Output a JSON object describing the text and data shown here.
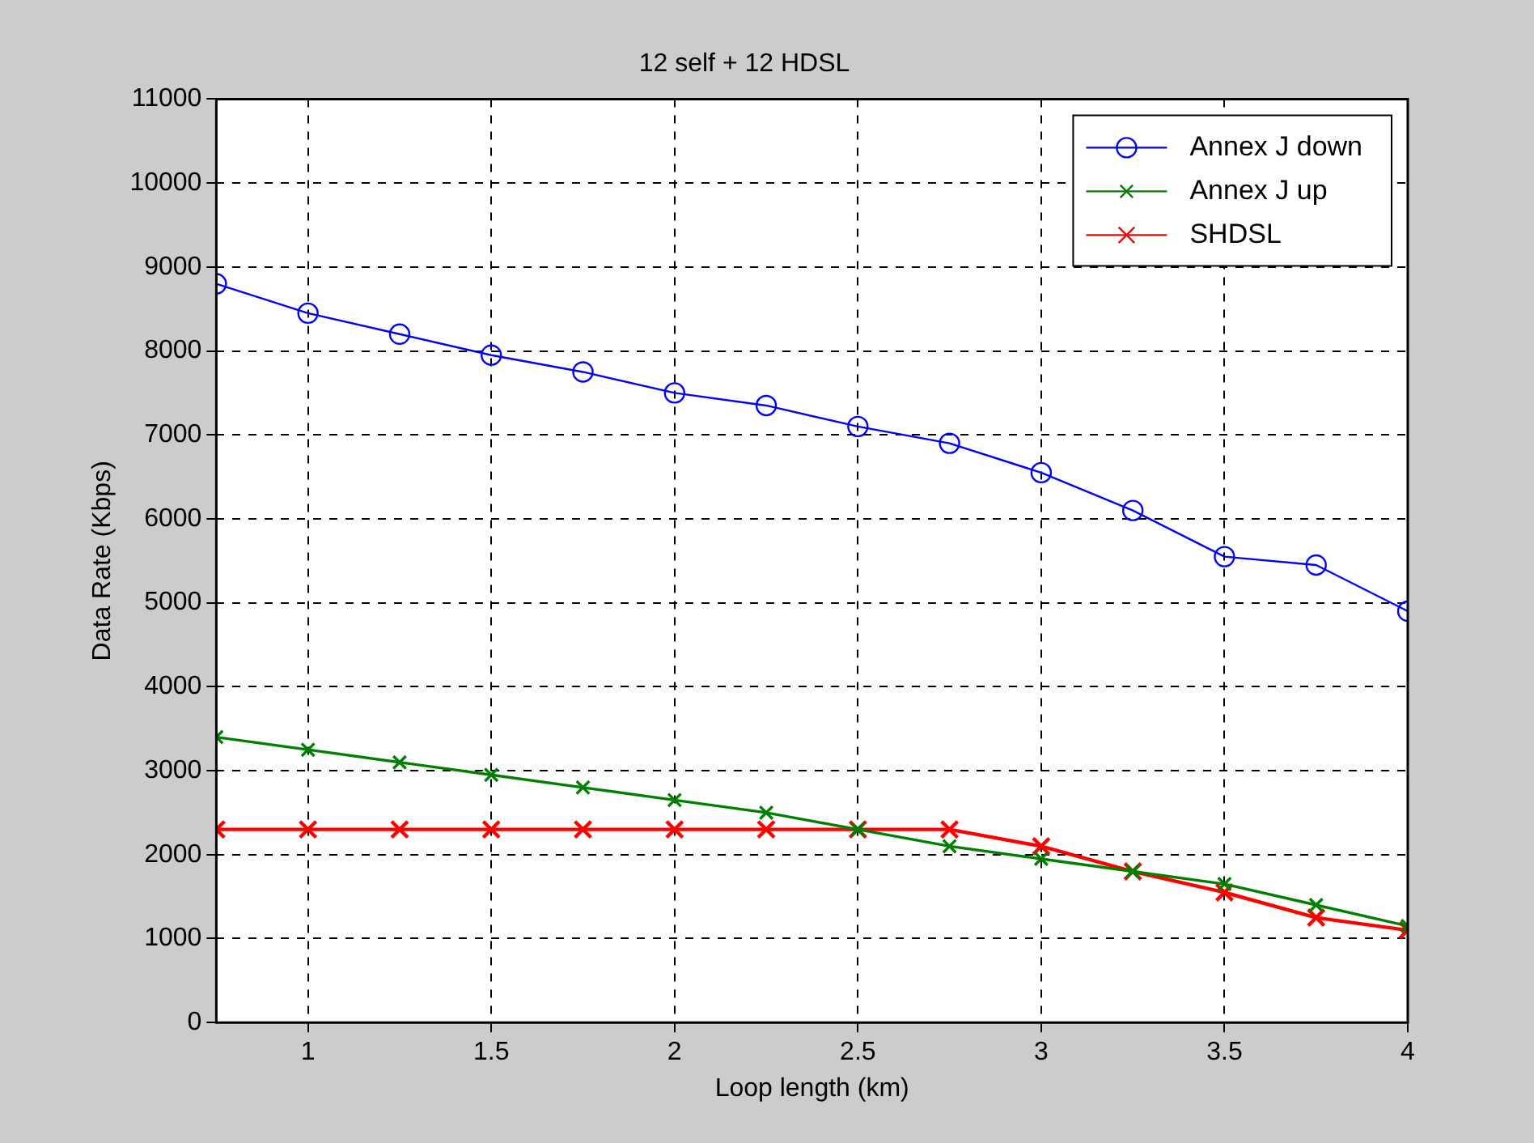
{
  "chart_data": {
    "type": "line",
    "title": "12 self + 12 HDSL",
    "xlabel": "Loop length (km)",
    "ylabel": "Data Rate (Kbps)",
    "x": [
      0.75,
      1,
      1.25,
      1.5,
      1.75,
      2,
      2.25,
      2.5,
      2.75,
      3,
      3.25,
      3.5,
      3.75,
      4
    ],
    "series": [
      {
        "name": "Annex J down",
        "color": "#0000ff",
        "marker": "circle",
        "values": [
          8800,
          8450,
          8200,
          7950,
          7750,
          7500,
          7350,
          7100,
          6900,
          6550,
          6100,
          5550,
          5450,
          4900
        ]
      },
      {
        "name": "Annex J up",
        "color": "#008000",
        "marker": "cross",
        "values": [
          3400,
          3250,
          3100,
          2950,
          2800,
          2650,
          2500,
          2300,
          2100,
          1950,
          1800,
          1650,
          1400,
          1150
        ]
      },
      {
        "name": "SHDSL",
        "color": "#ff0000",
        "marker": "cross",
        "values": [
          2300,
          2300,
          2300,
          2300,
          2300,
          2300,
          2300,
          2300,
          2300,
          2100,
          1800,
          1550,
          1250,
          1100
        ]
      }
    ],
    "xlim": [
      0.75,
      4
    ],
    "xticks": [
      1,
      1.5,
      2,
      2.5,
      3,
      3.5,
      4
    ],
    "ylim": [
      0,
      11000
    ],
    "yticks": [
      0,
      1000,
      2000,
      3000,
      4000,
      5000,
      6000,
      7000,
      8000,
      9000,
      10000,
      11000
    ],
    "grid": true,
    "legend": "top right",
    "line_style": "solid"
  }
}
